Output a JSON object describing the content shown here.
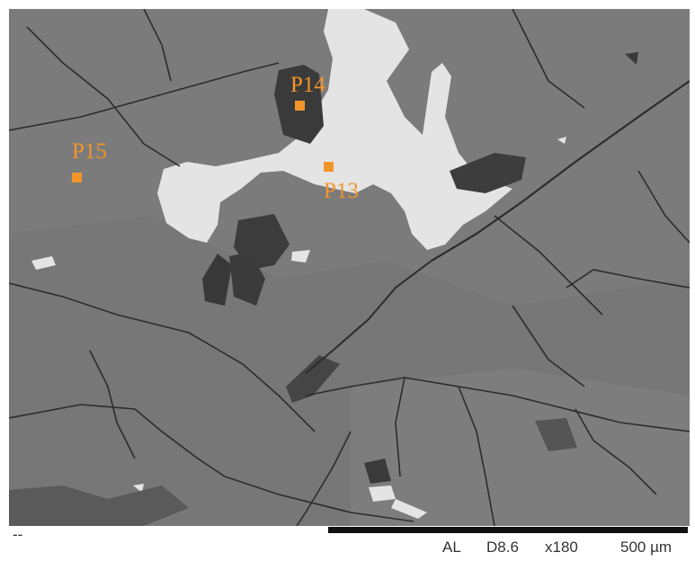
{
  "image": {
    "subject": "sem-backscatter-micrograph",
    "colors": {
      "matrix_gray": "#7b7b7b",
      "bright_phase": "#e4e4e4",
      "dark_phase": "#3a3a3a",
      "crack": "#2c2c2c",
      "marker_orange": "#f2962a",
      "footer_text": "#333333"
    }
  },
  "points": [
    {
      "id": "P14",
      "label": "P14"
    },
    {
      "id": "P15",
      "label": "P15"
    },
    {
      "id": "P13",
      "label": "P13"
    }
  ],
  "footer": {
    "left_mark": "--",
    "signal": "AL",
    "working_distance": "D8.6",
    "magnification": "x180",
    "scale": "500 µm"
  }
}
